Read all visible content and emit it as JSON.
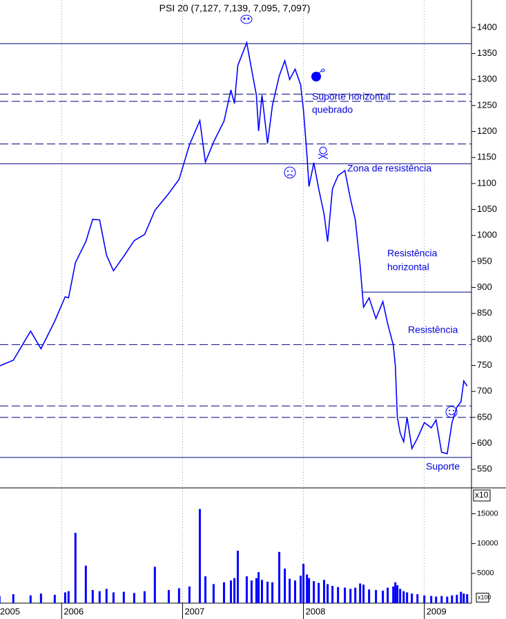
{
  "chart_data": [
    {
      "type": "line",
      "title": "PSI 20 (7,127, 7,139, 7,095, 7,097)",
      "color": "#0000ff",
      "axis_multiplier": "x10",
      "xlim": [
        2005.49,
        2009.39
      ],
      "xticks": [
        2005,
        2006,
        2007,
        2008,
        2009
      ],
      "xgrid": true,
      "ylim": [
        517,
        1453
      ],
      "yticks": [
        550,
        600,
        650,
        700,
        750,
        800,
        850,
        900,
        950,
        1000,
        1050,
        1100,
        1150,
        1200,
        1250,
        1300,
        1350,
        1400
      ],
      "x": [
        2005.486,
        2005.6,
        2005.743,
        2005.829,
        2005.943,
        2006.029,
        2006.057,
        2006.114,
        2006.2,
        2006.257,
        2006.314,
        2006.371,
        2006.429,
        2006.514,
        2006.6,
        2006.686,
        2006.771,
        2006.886,
        2006.971,
        2007.057,
        2007.143,
        2007.189,
        2007.257,
        2007.343,
        2007.4,
        2007.429,
        2007.457,
        2007.531,
        2007.571,
        2007.611,
        2007.629,
        2007.657,
        2007.703,
        2007.743,
        2007.8,
        2007.846,
        2007.886,
        2007.931,
        2007.977,
        2008.0,
        2008.029,
        2008.046,
        2008.086,
        2008.126,
        2008.171,
        2008.2,
        2008.24,
        2008.286,
        2008.343,
        2008.389,
        2008.429,
        2008.469,
        2008.497,
        2008.543,
        2008.6,
        2008.657,
        2008.697,
        2008.743,
        2008.76,
        2008.777,
        2008.8,
        2008.829,
        2008.857,
        2008.897,
        2008.943,
        2009.0,
        2009.057,
        2009.097,
        2009.143,
        2009.189,
        2009.229,
        2009.269,
        2009.303,
        2009.326,
        2009.354
      ],
      "values": [
        749,
        760,
        816,
        782,
        835,
        882,
        880,
        948,
        988,
        1031,
        1030,
        962,
        932,
        960,
        990,
        1002,
        1048,
        1081,
        1108,
        1174,
        1221,
        1141,
        1180,
        1220,
        1280,
        1254,
        1327,
        1371,
        1320,
        1270,
        1201,
        1270,
        1177,
        1250,
        1307,
        1336,
        1300,
        1320,
        1290,
        1241,
        1154,
        1094,
        1140,
        1090,
        1041,
        988,
        1090,
        1115,
        1125,
        1070,
        1030,
        942,
        862,
        880,
        840,
        873,
        830,
        789,
        749,
        650,
        620,
        603,
        650,
        590,
        610,
        640,
        630,
        645,
        583,
        580,
        640,
        670,
        680,
        720,
        710
      ],
      "levels": [
        {
          "value": 1369,
          "style": "solid"
        },
        {
          "value": 1272,
          "style": "dashed"
        },
        {
          "value": 1258,
          "style": "dashed"
        },
        {
          "value": 1176,
          "style": "dashed"
        },
        {
          "value": 1138,
          "style": "solid"
        },
        {
          "value": 891,
          "style": "solid",
          "from": 2008.486
        },
        {
          "value": 790,
          "style": "dashed"
        },
        {
          "value": 672,
          "style": "dashed"
        },
        {
          "value": 650,
          "style": "dashed"
        },
        {
          "value": 573,
          "style": "solid"
        }
      ],
      "annotations": [
        [
          "Suporte horizontal",
          "quebrado"
        ],
        [
          "Zona de resistência"
        ],
        [
          "Resistência",
          "horizontal"
        ],
        [
          "Resistência"
        ],
        [
          "Suporte"
        ]
      ]
    },
    {
      "type": "bar",
      "color": "#0000ff",
      "axis_multiplier": "x100",
      "ylim": [
        0,
        19000
      ],
      "yticks": [
        5000,
        10000,
        15000
      ],
      "x": [
        2005.486,
        2005.6,
        2005.743,
        2005.829,
        2005.943,
        2006.029,
        2006.057,
        2006.114,
        2006.2,
        2006.257,
        2006.314,
        2006.371,
        2006.429,
        2006.514,
        2006.6,
        2006.686,
        2006.771,
        2006.886,
        2006.971,
        2007.057,
        2007.143,
        2007.189,
        2007.257,
        2007.343,
        2007.4,
        2007.429,
        2007.457,
        2007.531,
        2007.571,
        2007.611,
        2007.629,
        2007.657,
        2007.703,
        2007.743,
        2007.8,
        2007.846,
        2007.886,
        2007.931,
        2007.977,
        2008.0,
        2008.029,
        2008.046,
        2008.086,
        2008.126,
        2008.171,
        2008.2,
        2008.24,
        2008.286,
        2008.343,
        2008.389,
        2008.429,
        2008.469,
        2008.497,
        2008.543,
        2008.6,
        2008.657,
        2008.697,
        2008.743,
        2008.76,
        2008.777,
        2008.8,
        2008.829,
        2008.857,
        2008.897,
        2008.943,
        2009.0,
        2009.057,
        2009.097,
        2009.143,
        2009.189,
        2009.229,
        2009.269,
        2009.303,
        2009.326,
        2009.354
      ],
      "values": [
        1200,
        1500,
        1300,
        1600,
        1400,
        1800,
        2000,
        11800,
        6300,
        2200,
        2000,
        2400,
        1800,
        1900,
        1700,
        2000,
        6100,
        2200,
        2500,
        2800,
        15800,
        4500,
        3200,
        3500,
        3800,
        4200,
        8800,
        4500,
        3800,
        4200,
        5200,
        3900,
        3600,
        3500,
        8600,
        5800,
        4100,
        3800,
        4600,
        6600,
        4800,
        4200,
        3700,
        3400,
        3900,
        3200,
        2900,
        2700,
        2600,
        2400,
        2600,
        3300,
        3100,
        2300,
        2200,
        2100,
        2600,
        2800,
        3500,
        3000,
        2400,
        2000,
        1800,
        1600,
        1500,
        1300,
        1200,
        1100,
        1200,
        1100,
        1300,
        1400,
        1900,
        1600,
        1500
      ]
    }
  ]
}
